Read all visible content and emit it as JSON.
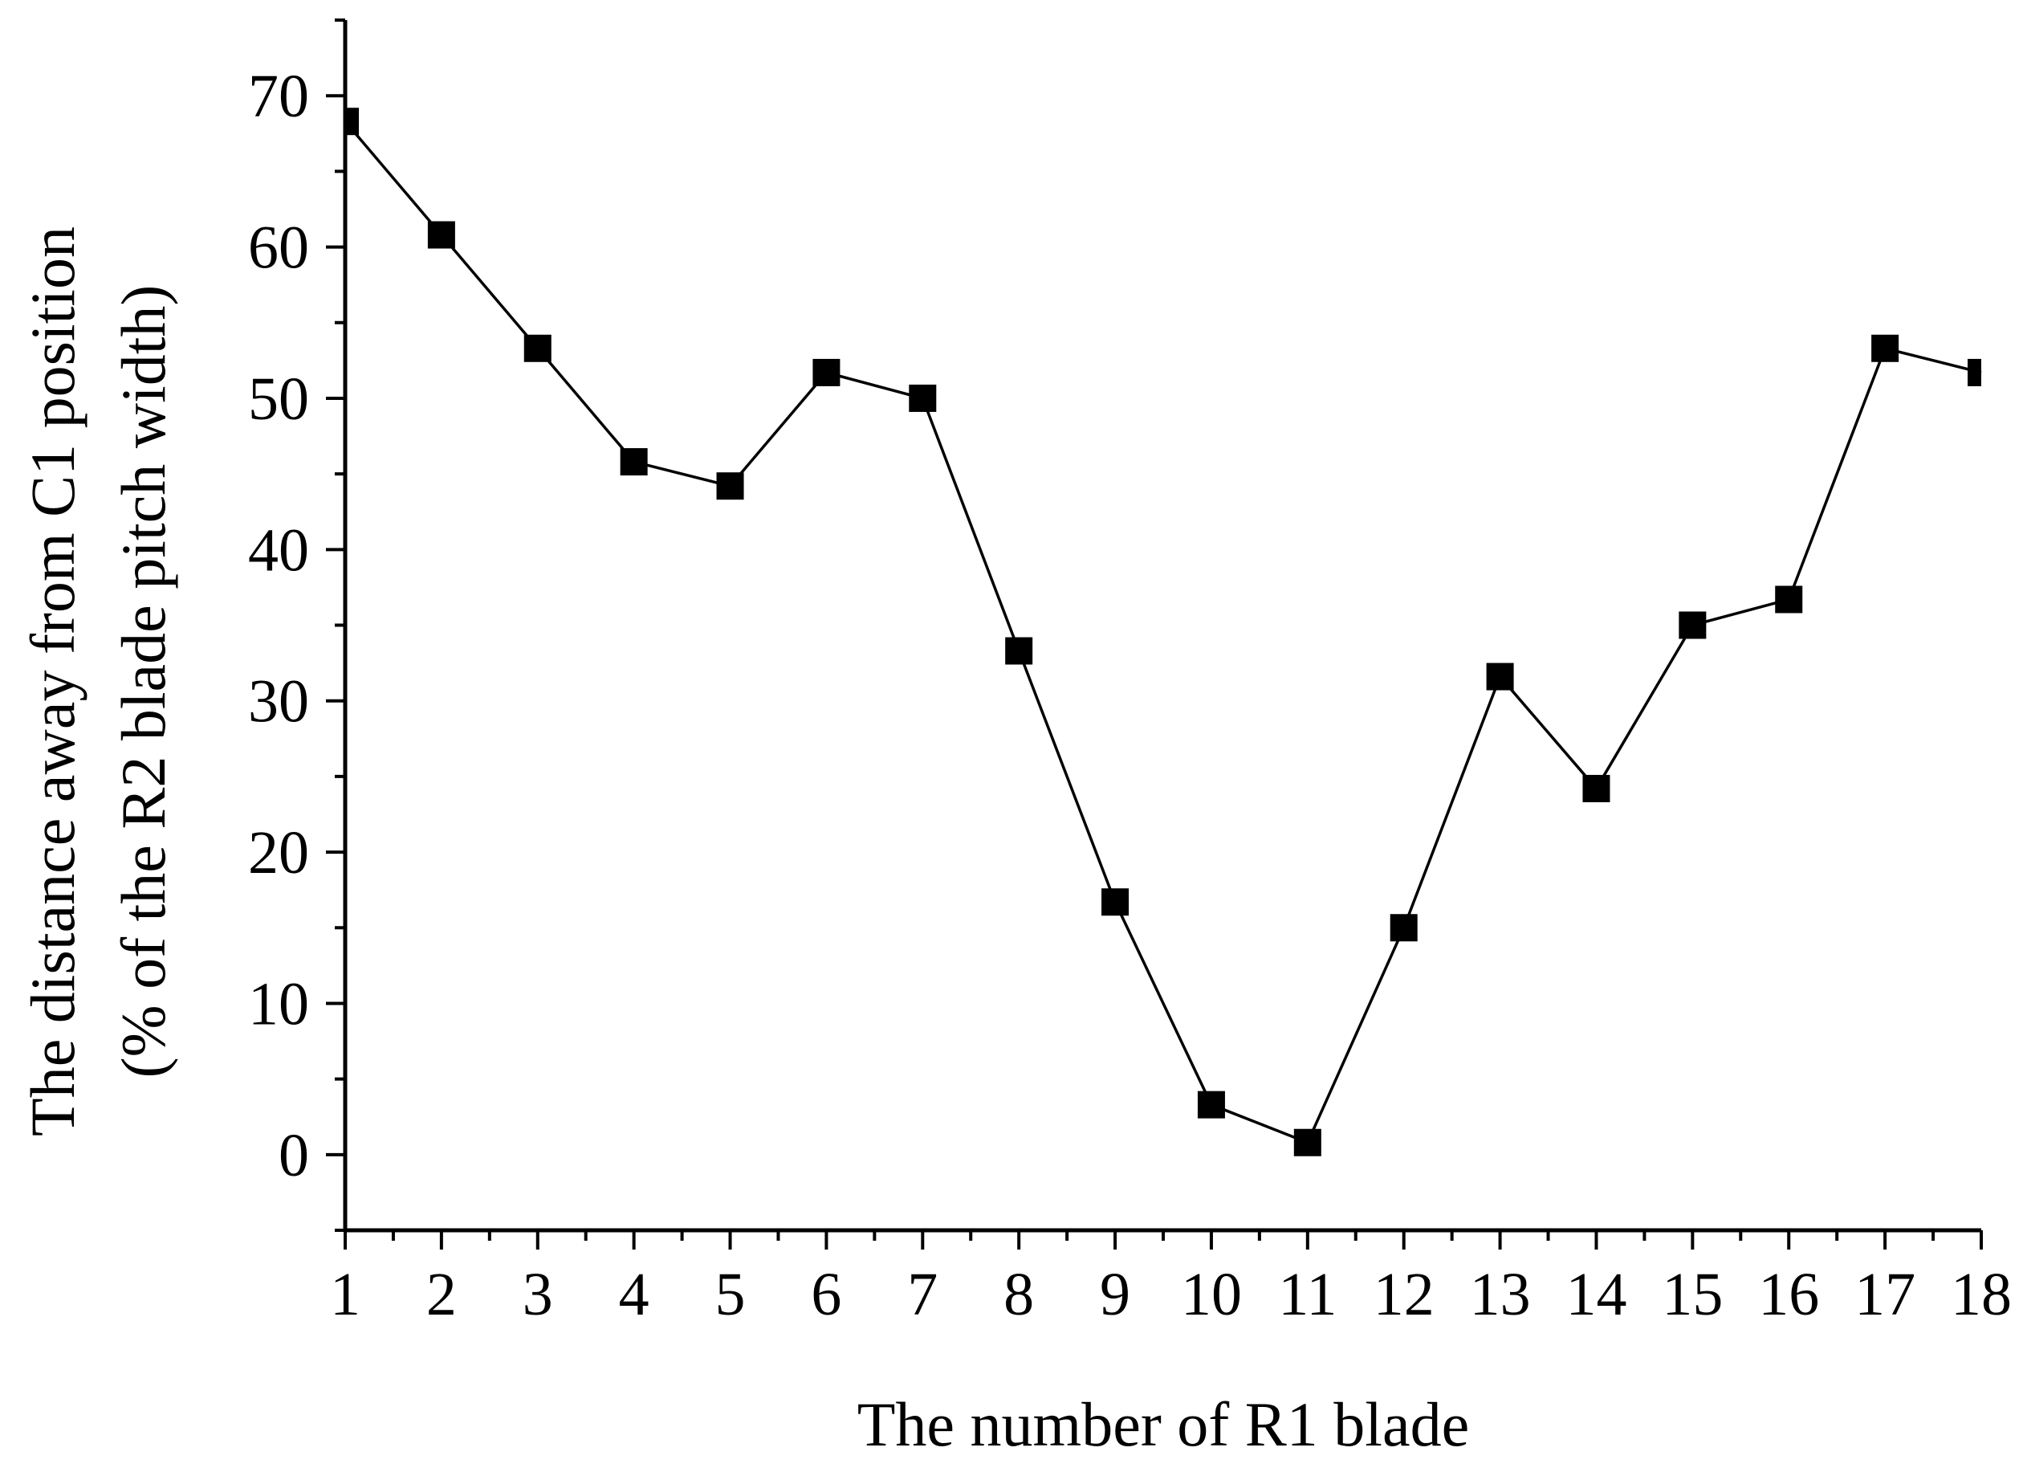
{
  "chart_data": {
    "type": "line",
    "title": "",
    "xlabel": "The number of R1 blade",
    "ylabel_lines": [
      "The distance away from C1 position",
      "(% of the R2 blade pitch width)"
    ],
    "x": [
      1,
      2,
      3,
      4,
      5,
      6,
      7,
      8,
      9,
      10,
      11,
      12,
      13,
      14,
      15,
      16,
      17,
      18
    ],
    "series": [
      {
        "values": [
          68.3,
          60.8,
          53.3,
          45.8,
          44.2,
          51.7,
          50.0,
          33.3,
          16.7,
          3.3,
          0.8,
          15.0,
          31.6,
          24.2,
          35.0,
          36.7,
          53.3,
          51.7
        ],
        "marker": "square",
        "color": "#000000"
      }
    ],
    "xlim": [
      1,
      18
    ],
    "ylim": [
      -5,
      75
    ],
    "x_ticks": [
      "1",
      "2",
      "3",
      "4",
      "5",
      "6",
      "7",
      "8",
      "9",
      "10",
      "11",
      "12",
      "13",
      "14",
      "15",
      "16",
      "17",
      "18"
    ],
    "y_ticks": [
      "0",
      "10",
      "20",
      "30",
      "40",
      "50",
      "60",
      "70"
    ],
    "grid": false,
    "legend": "none"
  }
}
